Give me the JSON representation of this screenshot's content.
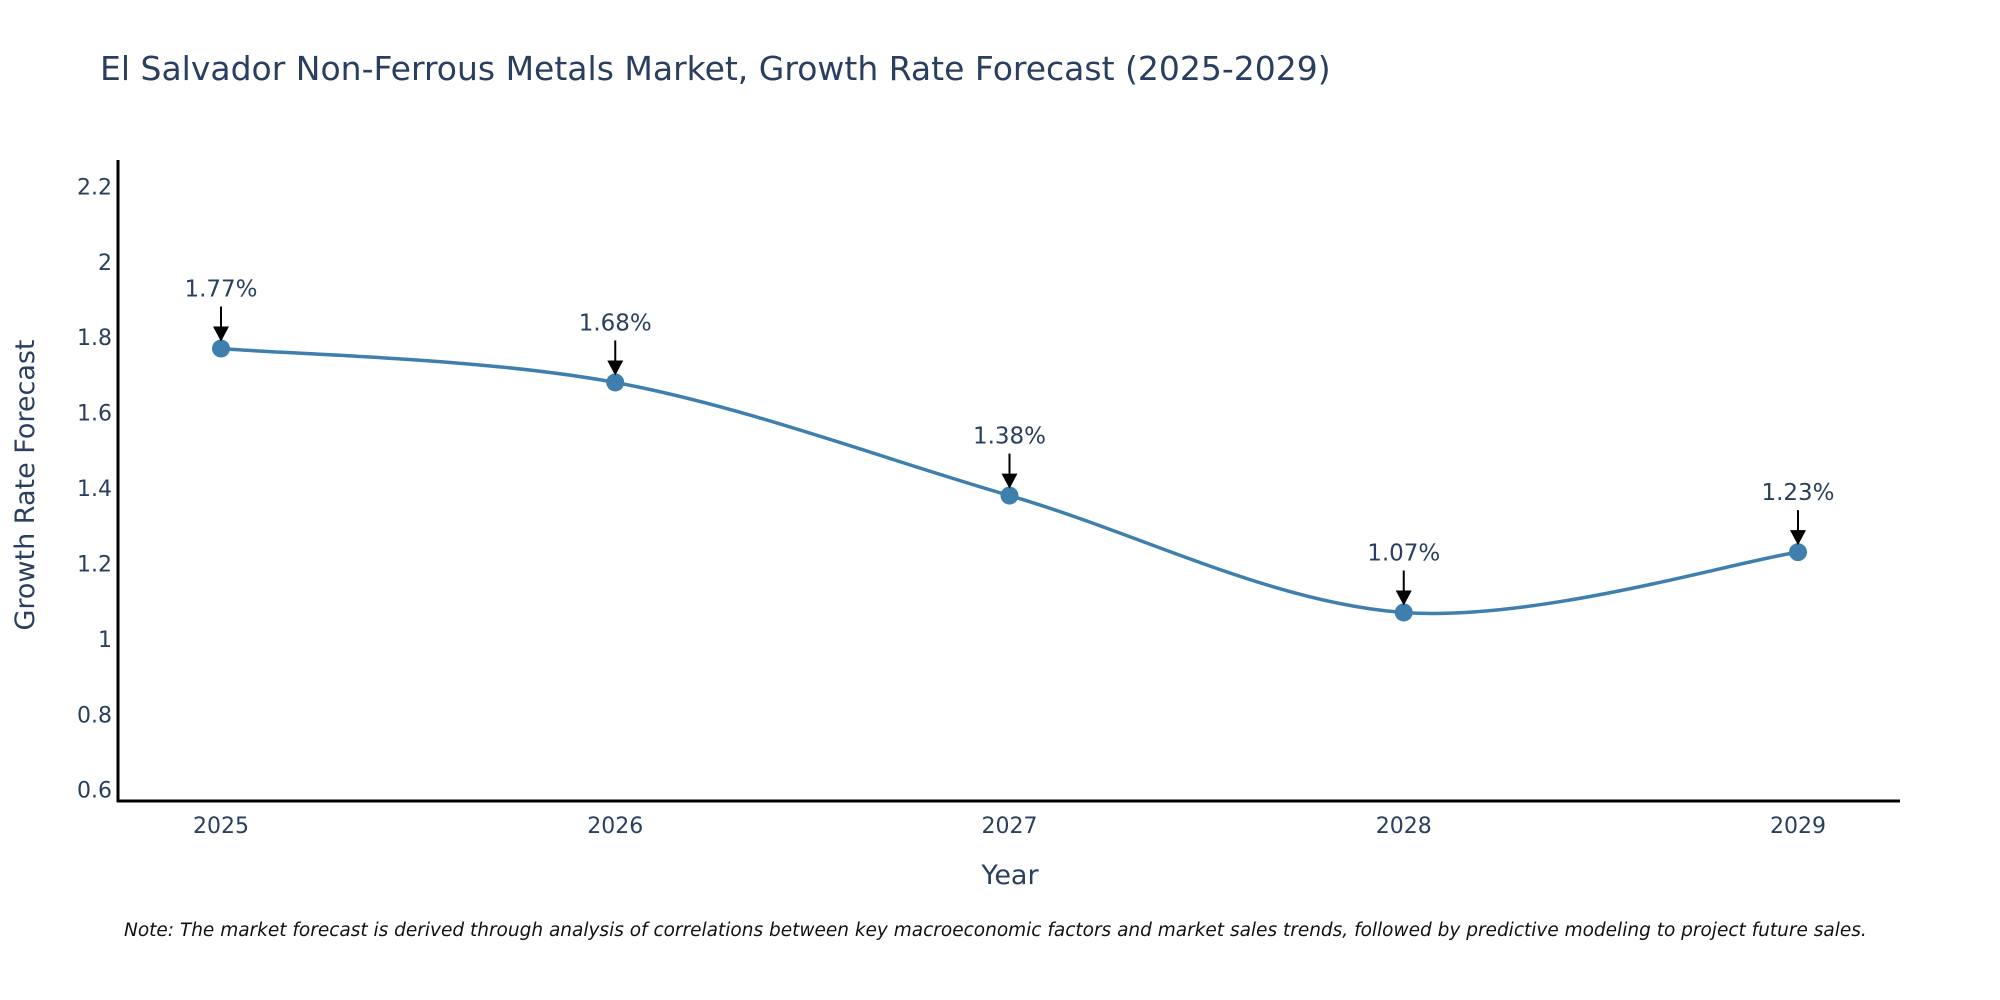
{
  "chart_data": {
    "type": "line",
    "title": "El Salvador Non-Ferrous Metals Market, Growth Rate Forecast (2025-2029)",
    "xlabel": "Year",
    "ylabel": "Growth Rate Forecast",
    "categories": [
      "2025",
      "2026",
      "2027",
      "2028",
      "2029"
    ],
    "series": [
      {
        "name": "Growth Rate Forecast",
        "values": [
          1.77,
          1.68,
          1.38,
          1.07,
          1.23
        ],
        "color": "#3f7fad"
      }
    ],
    "annotations": [
      "1.77%",
      "1.68%",
      "1.38%",
      "1.07%",
      "1.23%"
    ],
    "yticks": [
      0.6,
      0.8,
      1,
      1.2,
      1.4,
      1.6,
      1.8,
      2,
      2.2
    ],
    "ytick_labels": [
      "0.6",
      "0.8",
      "1",
      "1.2",
      "1.4",
      "1.6",
      "1.8",
      "2",
      "2.2"
    ],
    "ylim": [
      0.57,
      2.27
    ],
    "line_shape": "spline",
    "grid": false,
    "legend": "none"
  },
  "note": "Note: The market forecast is derived through analysis of correlations between key macroeconomic factors and market sales trends, followed by predictive modeling to project future sales."
}
